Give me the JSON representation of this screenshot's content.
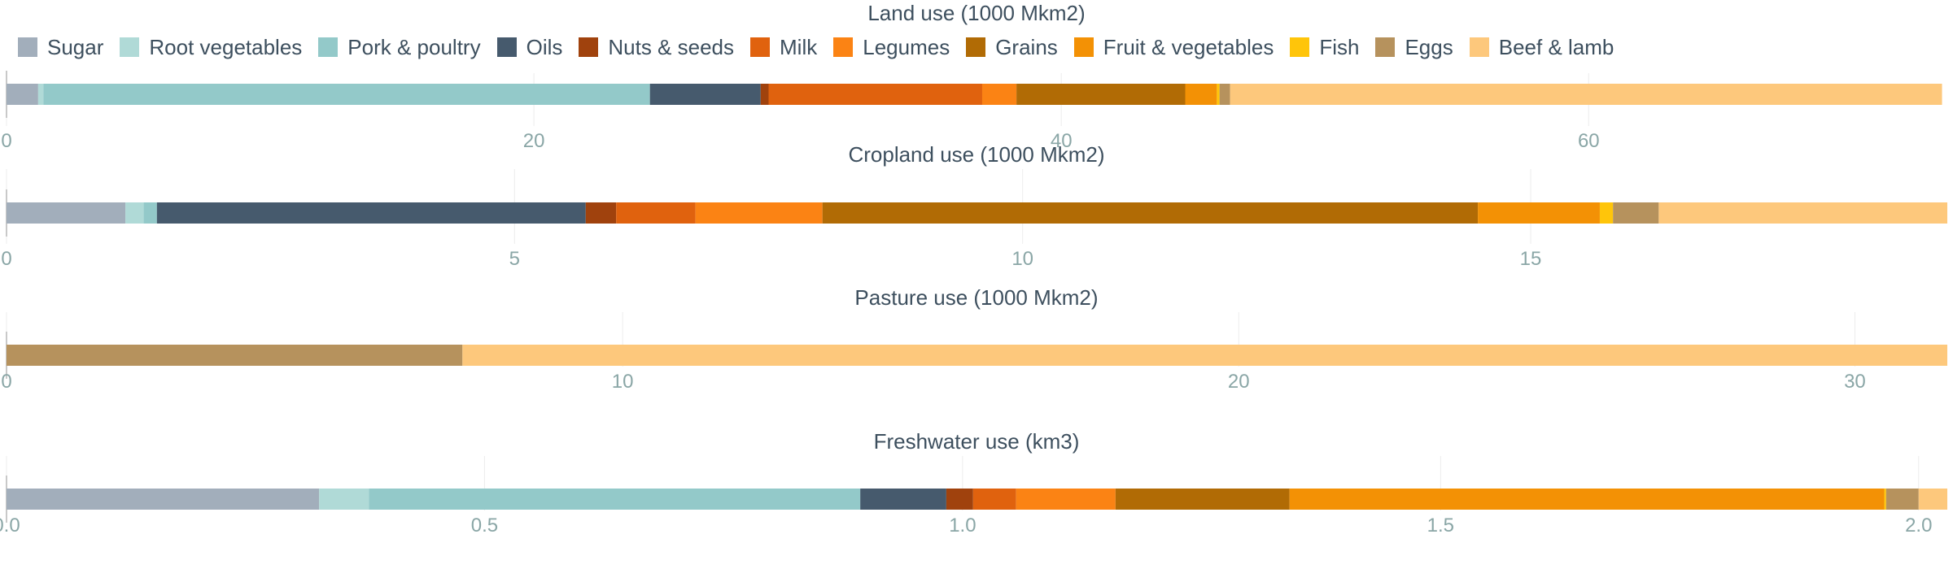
{
  "legend": [
    {
      "name": "Sugar",
      "color": "#a2aebb"
    },
    {
      "name": "Root vegetables",
      "color": "#b0dad7"
    },
    {
      "name": "Pork & poultry",
      "color": "#93c9c9"
    },
    {
      "name": "Oils",
      "color": "#465a6d"
    },
    {
      "name": "Nuts & seeds",
      "color": "#a0420d"
    },
    {
      "name": "Milk",
      "color": "#e0620e"
    },
    {
      "name": "Legumes",
      "color": "#fb8314"
    },
    {
      "name": "Grains",
      "color": "#b16b05"
    },
    {
      "name": "Fruit & vegetables",
      "color": "#f39105"
    },
    {
      "name": "Fish",
      "color": "#ffc50a"
    },
    {
      "name": "Eggs",
      "color": "#b6925d"
    },
    {
      "name": "Beef & lamb",
      "color": "#fdc87c"
    }
  ],
  "chart_data": [
    {
      "type": "bar",
      "orientation": "horizontal-stacked",
      "title": "Land use (1000 Mkm2)",
      "xlim": [
        0,
        73.6
      ],
      "ticks": [
        "0",
        "20",
        "40",
        "60"
      ],
      "tick_values": [
        0,
        20,
        40,
        60
      ],
      "segments": [
        {
          "name": "Sugar",
          "value": 1.2
        },
        {
          "name": "Root vegetables",
          "value": 0.2
        },
        {
          "name": "Pork & poultry",
          "value": 23.0
        },
        {
          "name": "Oils",
          "value": 4.2
        },
        {
          "name": "Nuts & seeds",
          "value": 0.3
        },
        {
          "name": "Milk",
          "value": 8.1
        },
        {
          "name": "Legumes",
          "value": 1.3
        },
        {
          "name": "Grains",
          "value": 6.4
        },
        {
          "name": "Fruit & vegetables",
          "value": 1.2
        },
        {
          "name": "Fish",
          "value": 0.1
        },
        {
          "name": "Eggs",
          "value": 0.4
        },
        {
          "name": "Beef & lamb",
          "value": 27.0
        }
      ]
    },
    {
      "type": "bar",
      "orientation": "horizontal-stacked",
      "title": "Cropland use (1000 Mkm2)",
      "xlim": [
        0,
        19.1
      ],
      "ticks": [
        "0",
        "5",
        "10",
        "15"
      ],
      "tick_values": [
        0,
        5,
        10,
        15
      ],
      "segments": [
        {
          "name": "Sugar",
          "value": 1.17
        },
        {
          "name": "Root vegetables",
          "value": 0.18
        },
        {
          "name": "Pork & poultry",
          "value": 0.13
        },
        {
          "name": "Oils",
          "value": 4.22
        },
        {
          "name": "Nuts & seeds",
          "value": 0.3
        },
        {
          "name": "Milk",
          "value": 0.78
        },
        {
          "name": "Legumes",
          "value": 1.25
        },
        {
          "name": "Grains",
          "value": 6.45
        },
        {
          "name": "Fruit & vegetables",
          "value": 1.2
        },
        {
          "name": "Fish",
          "value": 0.13
        },
        {
          "name": "Eggs",
          "value": 0.45
        },
        {
          "name": "Beef & lamb",
          "value": 2.84
        }
      ]
    },
    {
      "type": "bar",
      "orientation": "horizontal-stacked",
      "title": "Pasture use (1000 Mkm2)",
      "xlim": [
        0,
        31.5
      ],
      "ticks": [
        "0",
        "10",
        "20",
        "30"
      ],
      "tick_values": [
        0,
        10,
        20,
        30
      ],
      "segments": [
        {
          "name": "Eggs",
          "value": 7.4
        },
        {
          "name": "Beef & lamb",
          "value": 24.1
        }
      ]
    },
    {
      "type": "bar",
      "orientation": "horizontal-stacked",
      "title": "Freshwater use (km3)",
      "xlim": [
        0,
        2.03
      ],
      "ticks": [
        "0.0",
        "0.5",
        "1.0",
        "1.5",
        "2.0"
      ],
      "tick_values": [
        0,
        0.5,
        1.0,
        1.5,
        2.0
      ],
      "segments": [
        {
          "name": "Sugar",
          "value": 0.327
        },
        {
          "name": "Root vegetables",
          "value": 0.052
        },
        {
          "name": "Pork & poultry",
          "value": 0.514
        },
        {
          "name": "Oils",
          "value": 0.09
        },
        {
          "name": "Nuts & seeds",
          "value": 0.028
        },
        {
          "name": "Milk",
          "value": 0.045
        },
        {
          "name": "Legumes",
          "value": 0.104
        },
        {
          "name": "Grains",
          "value": 0.182
        },
        {
          "name": "Fruit & vegetables",
          "value": 0.622
        },
        {
          "name": "Fish",
          "value": 0.002
        },
        {
          "name": "Eggs",
          "value": 0.034
        },
        {
          "name": "Beef & lamb",
          "value": 0.03
        }
      ]
    }
  ]
}
